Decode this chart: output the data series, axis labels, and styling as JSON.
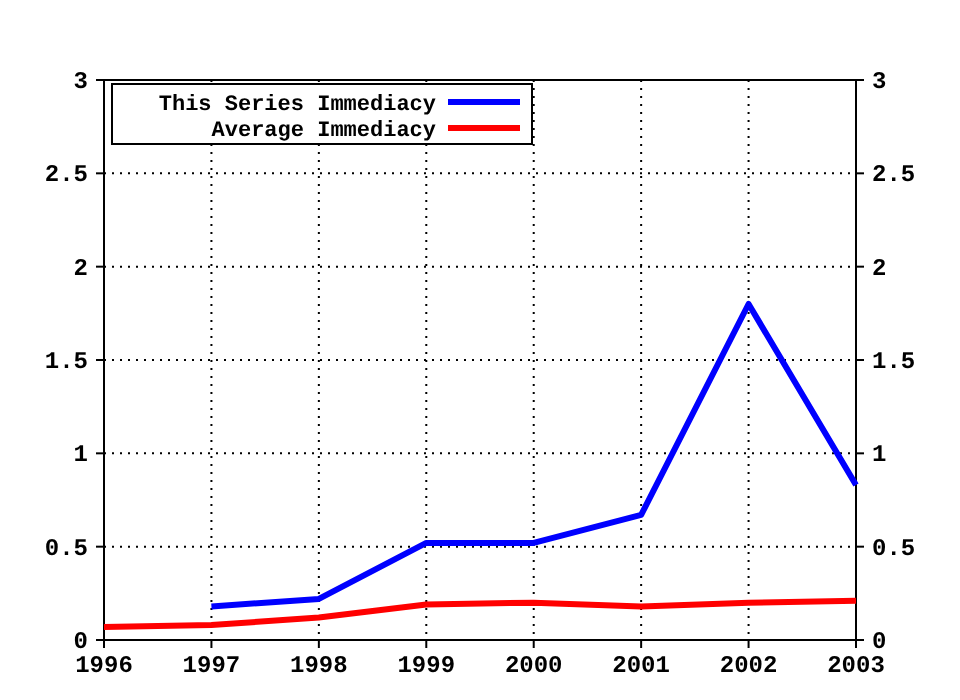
{
  "chart_data": {
    "type": "line",
    "x": [
      1996,
      1997,
      1998,
      1999,
      2000,
      2001,
      2002,
      2003
    ],
    "series": [
      {
        "name": "This Series Immediacy",
        "color": "#0000ff",
        "values": [
          null,
          0.18,
          0.22,
          0.52,
          0.52,
          0.67,
          1.8,
          0.83
        ]
      },
      {
        "name": "Average Immediacy",
        "color": "#ff0000",
        "values": [
          0.07,
          0.08,
          0.12,
          0.19,
          0.2,
          0.18,
          0.2,
          0.21
        ]
      }
    ],
    "xlim": [
      1996,
      2003
    ],
    "xticks": [
      1996,
      1997,
      1998,
      1999,
      2000,
      2001,
      2002,
      2003
    ],
    "ylim": [
      0,
      3
    ],
    "yticks": [
      0,
      0.5,
      1,
      1.5,
      2,
      2.5,
      3
    ],
    "y2lim": [
      0,
      3
    ],
    "y2ticks": [
      0,
      0.5,
      1,
      1.5,
      2,
      2.5,
      3
    ],
    "grid": true,
    "legend": "top left",
    "marker": "none",
    "line_style": "solid"
  }
}
